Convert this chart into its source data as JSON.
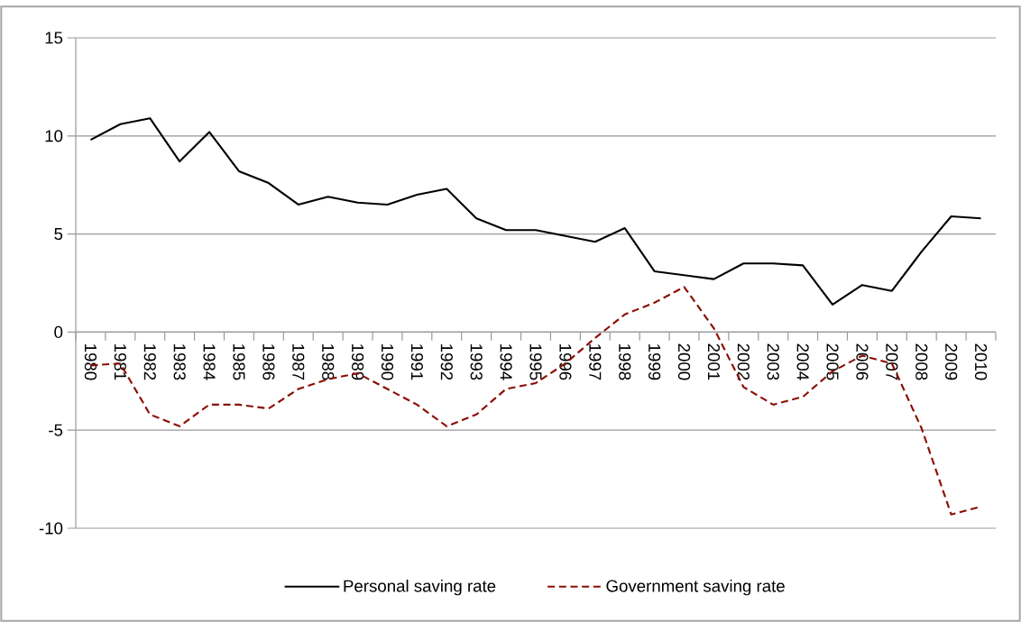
{
  "chart_data": {
    "type": "line",
    "categories": [
      "1980",
      "1981",
      "1982",
      "1983",
      "1984",
      "1985",
      "1986",
      "1987",
      "1988",
      "1989",
      "1990",
      "1991",
      "1992",
      "1993",
      "1994",
      "1995",
      "1996",
      "1997",
      "1998",
      "1999",
      "2000",
      "2001",
      "2002",
      "2003",
      "2004",
      "2005",
      "2006",
      "2007",
      "2008",
      "2009",
      "2010"
    ],
    "series": [
      {
        "name": "Personal saving rate",
        "color": "#000000",
        "line_style": "solid",
        "values": [
          9.8,
          10.6,
          10.9,
          8.7,
          10.2,
          8.2,
          7.6,
          6.5,
          6.9,
          6.6,
          6.5,
          7.0,
          7.3,
          5.8,
          5.2,
          5.2,
          4.9,
          4.6,
          5.3,
          3.1,
          2.9,
          2.7,
          3.5,
          3.5,
          3.4,
          1.4,
          2.4,
          2.1,
          4.1,
          5.9,
          5.8
        ]
      },
      {
        "name": "Government saving rate",
        "color": "#8b0e04",
        "line_style": "dashed",
        "values": [
          -1.7,
          -1.6,
          -4.2,
          -4.8,
          -3.7,
          -3.7,
          -3.9,
          -2.9,
          -2.4,
          -2.1,
          -2.9,
          -3.7,
          -4.8,
          -4.2,
          -2.9,
          -2.6,
          -1.6,
          -0.3,
          0.9,
          1.5,
          2.3,
          0.2,
          -2.8,
          -3.7,
          -3.3,
          -2.0,
          -1.2,
          -1.6,
          -4.9,
          -9.3,
          -8.9
        ]
      }
    ],
    "ylim": [
      -10,
      15
    ],
    "yticks": [
      -10,
      -5,
      0,
      5,
      10,
      15
    ],
    "grid": "y",
    "legend": "bottom",
    "marker": "none"
  }
}
